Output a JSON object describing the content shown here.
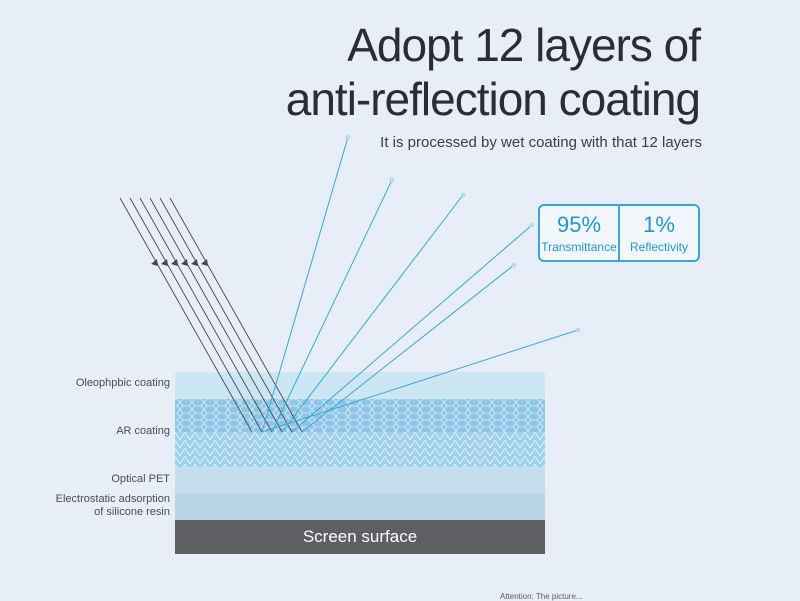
{
  "heading": {
    "line1": "Adopt 12 layers of",
    "line2": "anti-reflection coating",
    "subtitle": "It is processed by wet coating with that 12 layers"
  },
  "stats": [
    {
      "value": "95%",
      "label": "Transmittance"
    },
    {
      "value": "1%",
      "label": "Reflectivity"
    }
  ],
  "layers": {
    "oleophobic": "Oleophpbic coating",
    "ar": "AR coating",
    "optical_pet": "Optical PET",
    "silicone_line1": "Electrostatic adsorption",
    "silicone_line2": "of silicone resin",
    "screen": "Screen surface"
  },
  "footnote": "Attention: The picture...",
  "colors": {
    "background": "#e8eef7",
    "accent": "#3aa6d8",
    "screen": "#5d5f63"
  }
}
